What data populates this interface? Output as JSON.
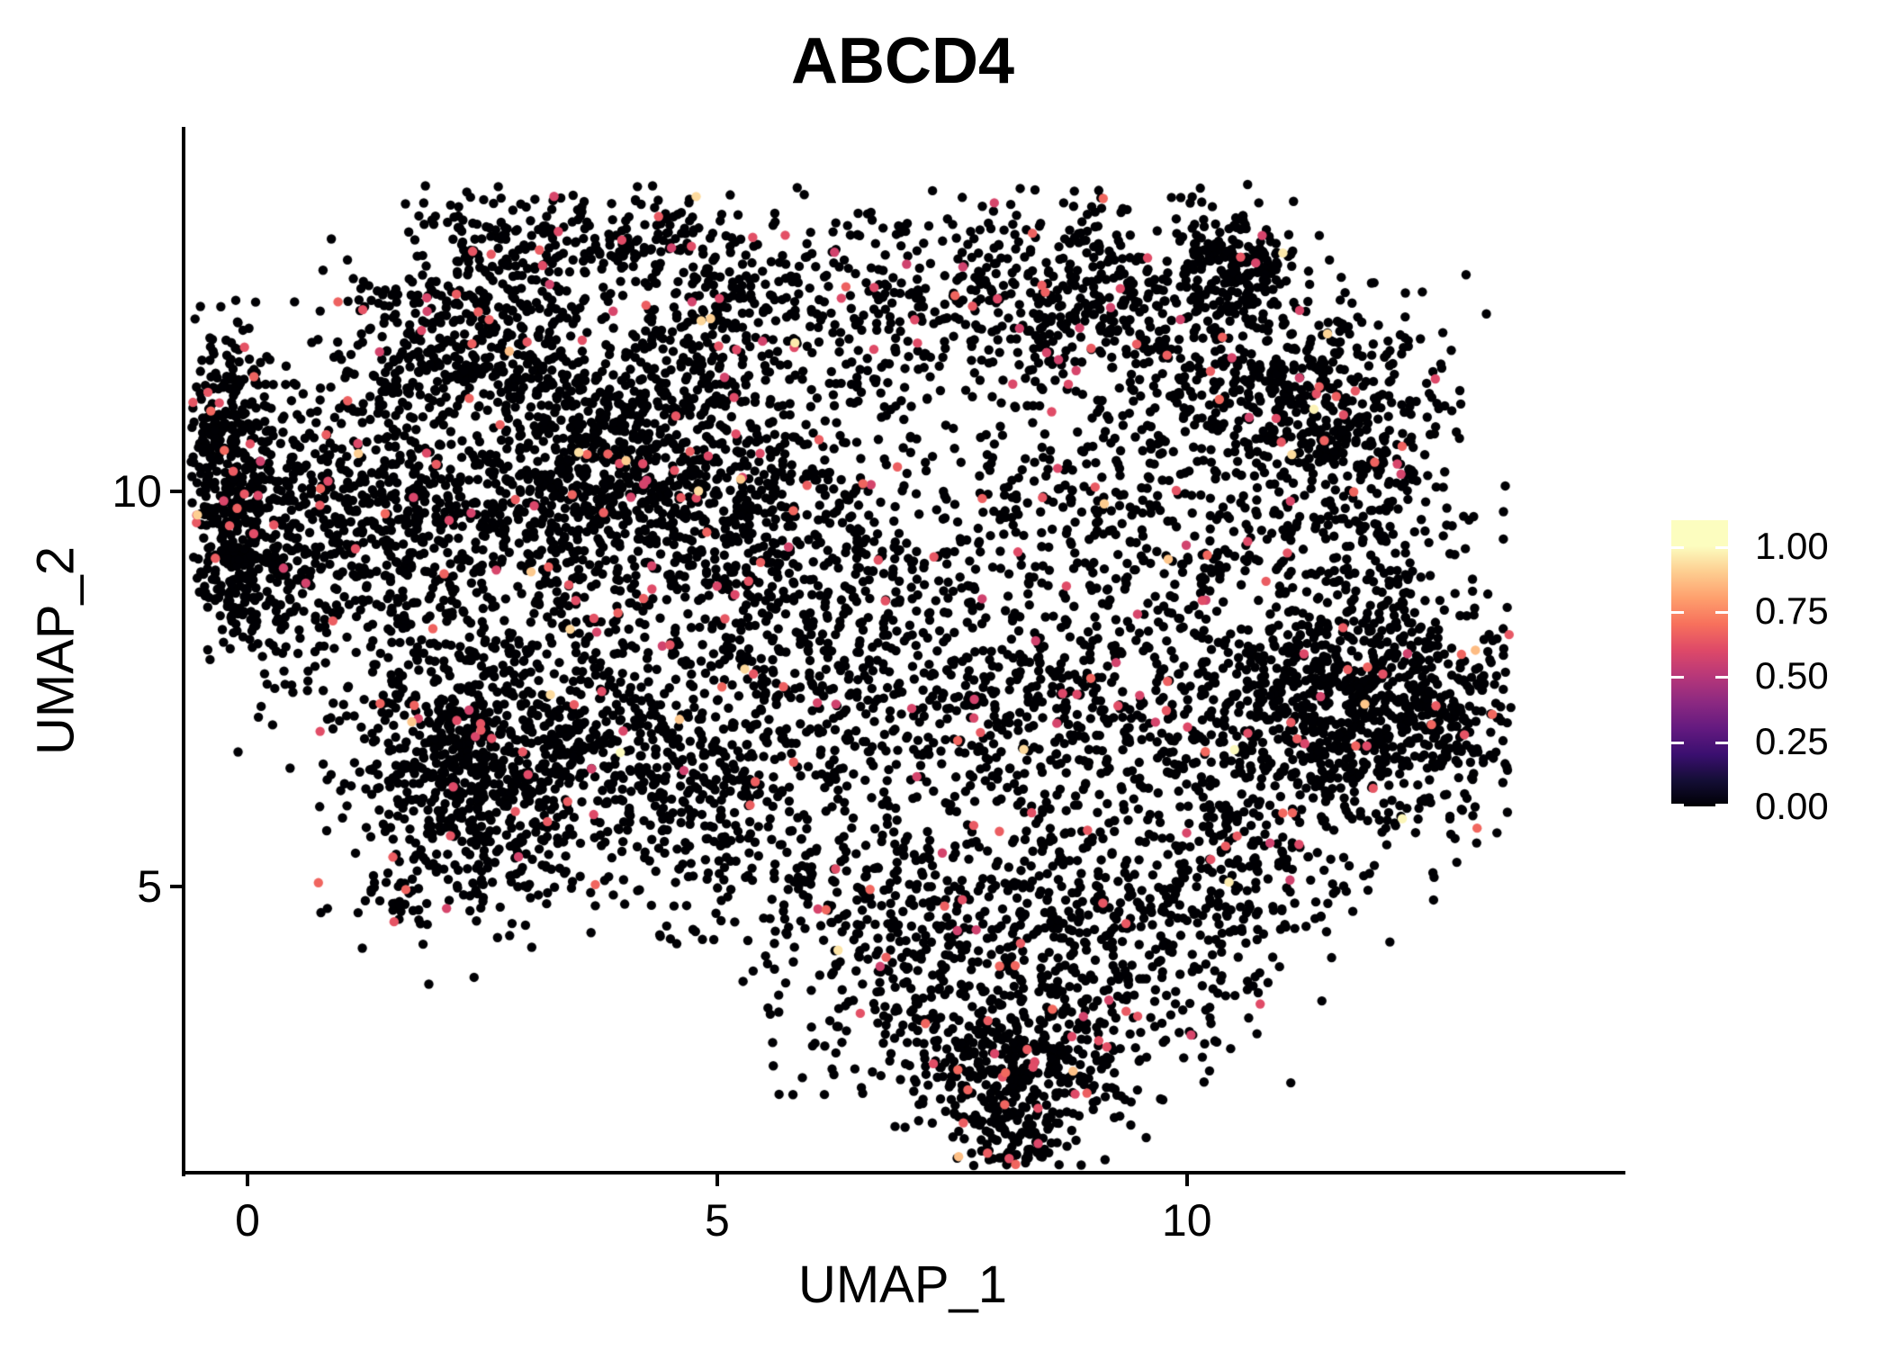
{
  "chart_data": {
    "type": "scatter",
    "title": "ABCD4",
    "xlabel": "UMAP_1",
    "ylabel": "UMAP_2",
    "xlim": [
      -0.68,
      14.63
    ],
    "ylim": [
      1.38,
      14.59
    ],
    "x_ticks": {
      "values": [
        0,
        5,
        10
      ],
      "labels": [
        "0",
        "5",
        "10"
      ]
    },
    "y_ticks": {
      "values": [
        5,
        10
      ],
      "labels": [
        "5",
        "10"
      ]
    },
    "grid": false,
    "background_color": "#ffffff",
    "axis_color": "#000000",
    "text_color": "#000000",
    "point_radius": 5.2,
    "colormap_name": "magma",
    "colormap_stops": [
      [
        0.0,
        "#000004"
      ],
      [
        0.1,
        "#140E36"
      ],
      [
        0.2,
        "#3B0F70"
      ],
      [
        0.3,
        "#641A80"
      ],
      [
        0.4,
        "#8C2981"
      ],
      [
        0.5,
        "#B73779"
      ],
      [
        0.6,
        "#DE4968"
      ],
      [
        0.7,
        "#F7705C"
      ],
      [
        0.8,
        "#FE9F6D"
      ],
      [
        0.9,
        "#FDCD90"
      ],
      [
        1.0,
        "#FCFDBF"
      ]
    ],
    "legend": {
      "position": "right",
      "bar_value_range": [
        0,
        1.1
      ],
      "tick_values": [
        1.0,
        0.75,
        0.5,
        0.25,
        0.0
      ],
      "tick_labels": [
        "1.00",
        "0.75",
        "0.50",
        "0.25",
        "0.00"
      ],
      "tick_mark_color": "#ffffff"
    },
    "expression": {
      "zero_value": 0,
      "zero_fraction": 0.963,
      "mid_fraction": 0.033,
      "mid_value_range": [
        0.56,
        0.68
      ],
      "high_fraction": 0.004,
      "high_value_range": [
        0.86,
        1.0
      ]
    },
    "seed": 1234,
    "point_bounds": {
      "xmin": -0.62,
      "xmax": 13.45,
      "ymin": 1.45,
      "ymax": 13.9
    },
    "clusters": [
      [
        -0.24,
        10.75,
        0.24,
        0.68,
        260
      ],
      [
        -0.05,
        9.16,
        0.27,
        0.65,
        220
      ],
      [
        1.01,
        9.6,
        0.77,
        1.1,
        650
      ],
      [
        2.25,
        6.65,
        0.55,
        0.9,
        420
      ],
      [
        1.68,
        4.83,
        0.38,
        0.17,
        30
      ],
      [
        2.73,
        5.17,
        0.57,
        0.28,
        60
      ],
      [
        2.44,
        13.03,
        0.34,
        0.4,
        90
      ],
      [
        3.3,
        13.26,
        0.43,
        0.36,
        100
      ],
      [
        1.77,
        12.12,
        0.48,
        0.51,
        120
      ],
      [
        2.73,
        11.66,
        0.57,
        0.57,
        250
      ],
      [
        3.59,
        9.84,
        1.25,
        0.4,
        300
      ],
      [
        4.07,
        10.75,
        0.86,
        0.68,
        500
      ],
      [
        4.45,
        13.14,
        0.38,
        0.34,
        80
      ],
      [
        5.03,
        12.23,
        0.48,
        0.46,
        150
      ],
      [
        6.47,
        12.46,
        0.77,
        0.68,
        140
      ],
      [
        5.51,
        8.82,
        1.15,
        1.14,
        650
      ],
      [
        4.84,
        6.2,
        0.96,
        0.8,
        400
      ],
      [
        2.95,
        6.42,
        0.85,
        0.46,
        250
      ],
      [
        3.11,
        8.25,
        0.86,
        1.25,
        350
      ],
      [
        8.86,
        12.46,
        1.25,
        0.68,
        550
      ],
      [
        10.54,
        12.8,
        0.3,
        0.3,
        150
      ],
      [
        11.54,
        10.75,
        0.45,
        0.55,
        120
      ],
      [
        10.97,
        11.32,
        0.7,
        0.68,
        300
      ],
      [
        9.82,
        9.38,
        1.44,
        1.03,
        500
      ],
      [
        12.12,
        9.84,
        0.45,
        1.03,
        180
      ],
      [
        11.73,
        7.22,
        0.86,
        0.8,
        800
      ],
      [
        12.69,
        7.33,
        0.38,
        0.57,
        120
      ],
      [
        8.38,
        7.11,
        1.34,
        0.68,
        500
      ],
      [
        10.68,
        5.4,
        0.48,
        0.68,
        140
      ],
      [
        8.38,
        5.06,
        1.53,
        0.57,
        300
      ],
      [
        6.94,
        3.92,
        0.77,
        0.8,
        280
      ],
      [
        9.34,
        3.92,
        0.86,
        0.8,
        300
      ],
      [
        8.19,
        2.55,
        0.57,
        0.57,
        380
      ],
      [
        8.29,
        1.81,
        0.24,
        0.23,
        60
      ],
      [
        5.99,
        10.52,
        2.87,
        1.71,
        400
      ]
    ]
  }
}
